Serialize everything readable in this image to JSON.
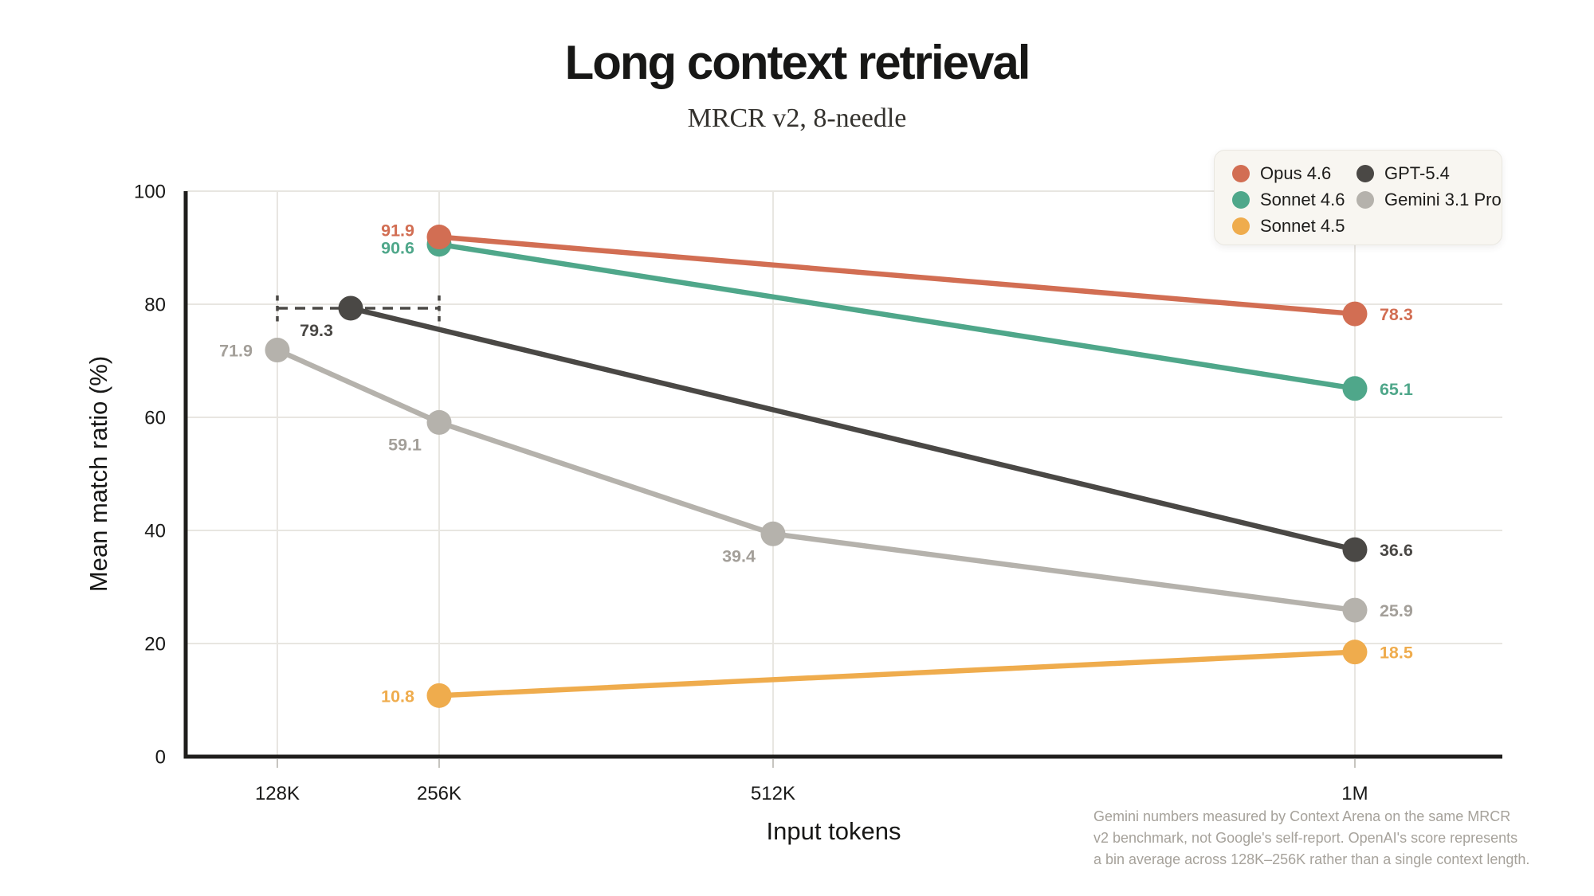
{
  "header": {
    "title": "Long context retrieval",
    "subtitle": "MRCR v2, 8-needle"
  },
  "chart_data": {
    "type": "line",
    "title": "Long context retrieval",
    "subtitle": "MRCR v2, 8-needle",
    "xlabel": "Input tokens",
    "ylabel": "Mean match ratio (%)",
    "x_categories": [
      "128K",
      "256K",
      "512K",
      "1M"
    ],
    "x_positions": {
      "128K": 0.0696,
      "256K": 0.1925,
      "512K": 0.4461,
      "1M": 0.888,
      "128K–256K": 0.1253
    },
    "ylim": [
      0,
      100
    ],
    "yticks": [
      0,
      20,
      40,
      60,
      80,
      100
    ],
    "grid": true,
    "grid_color": "#e8e6e1",
    "axis_color": "#1f1e1c",
    "legend_position": "top-right",
    "series": [
      {
        "name": "Opus 4.6",
        "color": "#D26E53",
        "z": 4,
        "points": [
          {
            "x": "256K",
            "y": 91.9,
            "label": "91.9",
            "label_side": "left",
            "label_offset": [
              0,
              -9
            ]
          },
          {
            "x": "1M",
            "y": 78.3,
            "label": "78.3",
            "label_side": "right"
          }
        ]
      },
      {
        "name": "Sonnet 4.6",
        "color": "#4FA78A",
        "z": 3,
        "points": [
          {
            "x": "256K",
            "y": 90.6,
            "label": "90.6",
            "label_side": "left",
            "label_offset": [
              0,
              4
            ]
          },
          {
            "x": "1M",
            "y": 65.1,
            "label": "65.1",
            "label_side": "right"
          }
        ]
      },
      {
        "name": "Sonnet 4.5",
        "color": "#EFAC4D",
        "z": 5,
        "points": [
          {
            "x": "256K",
            "y": 10.8,
            "label": "10.8",
            "label_side": "left"
          },
          {
            "x": "1M",
            "y": 18.5,
            "label": "18.5",
            "label_side": "right"
          }
        ]
      },
      {
        "name": "GPT-5.4",
        "color": "#4A4845",
        "z": 2,
        "points": [
          {
            "x": "128K–256K",
            "y": 79.3,
            "label": "79.3",
            "label_side": "below-left",
            "error_bar_x": [
              "128K",
              "256K"
            ]
          },
          {
            "x": "1M",
            "y": 36.6,
            "label": "36.6",
            "label_side": "right"
          }
        ]
      },
      {
        "name": "Gemini 3.1 Pro",
        "color": "#B5B2AC",
        "label_color": "#A39F99",
        "z": 1,
        "points": [
          {
            "x": "128K",
            "y": 71.9,
            "label": "71.9",
            "label_side": "left"
          },
          {
            "x": "256K",
            "y": 59.1,
            "label": "59.1",
            "label_side": "below-left"
          },
          {
            "x": "512K",
            "y": 39.4,
            "label": "39.4",
            "label_side": "below-left"
          },
          {
            "x": "1M",
            "y": 25.9,
            "label": "25.9",
            "label_side": "right"
          }
        ]
      }
    ],
    "footnote_lines": [
      "Gemini numbers measured by Context Arena on the same MRCR",
      "v2 benchmark, not Google's self-report. OpenAI's score represents",
      "a bin average across 128K–256K rather than a single context length."
    ],
    "footnote": "Gemini numbers measured by Context Arena on the same MRCR v2 benchmark, not Google's self-report. OpenAI's score represents a bin average across 128K–256K rather than a single context length."
  },
  "legend": {
    "columns": [
      [
        "Opus 4.6",
        "Sonnet 4.6",
        "Sonnet 4.5"
      ],
      [
        "GPT-5.4",
        "Gemini 3.1 Pro"
      ]
    ]
  }
}
